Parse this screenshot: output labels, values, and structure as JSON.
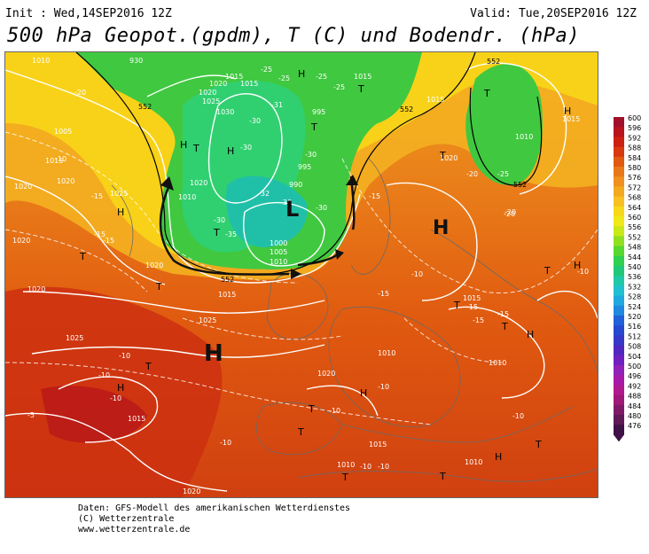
{
  "header": {
    "init": "Init : Wed,14SEP2016 12Z",
    "valid": "Valid: Tue,20SEP2016 12Z",
    "title": "500 hPa Geopot.(gpdm), T (C) und Bodendr. (hPa)"
  },
  "legend": {
    "levels": [
      "600",
      "596",
      "592",
      "588",
      "584",
      "580",
      "576",
      "572",
      "568",
      "564",
      "560",
      "556",
      "552",
      "548",
      "544",
      "540",
      "536",
      "532",
      "528",
      "524",
      "520",
      "516",
      "512",
      "508",
      "504",
      "500",
      "496",
      "492",
      "488",
      "484",
      "480",
      "476"
    ],
    "colors": [
      "#a0102a",
      "#b8141c",
      "#cc2010",
      "#d83a10",
      "#e05a10",
      "#e87818",
      "#f09020",
      "#f4a820",
      "#f8c020",
      "#f8d818",
      "#f0e818",
      "#c8e818",
      "#90e020",
      "#58d830",
      "#30d050",
      "#20c878",
      "#20c8a8",
      "#20c0d0",
      "#20a8e0",
      "#2088e0",
      "#2060d8",
      "#2848d0",
      "#3838c8",
      "#5028c0",
      "#7020c0",
      "#9020b8",
      "#a818a8",
      "#b01890",
      "#a01878",
      "#801868",
      "#601858",
      "#401048"
    ]
  },
  "map": {
    "pressure_labels": [
      "1010",
      "930",
      "1005",
      "1015",
      "1020",
      "1025",
      "1030",
      "1015",
      "1020",
      "1015",
      "995",
      "995",
      "990",
      "1000",
      "1005",
      "1010",
      "1020",
      "1025",
      "1020",
      "1020",
      "1020",
      "1025",
      "1025",
      "1015",
      "1015",
      "1010",
      "1015",
      "1010",
      "1010",
      "1015",
      "1020",
      "1010",
      "1015",
      "1015",
      "1020",
      "1010",
      "1020",
      "1010",
      "1020",
      "1015",
      "1020"
    ],
    "temp_labels": [
      "-20",
      "-25",
      "-30",
      "-31",
      "-32",
      "-30",
      "-30",
      "-25",
      "-25",
      "-30",
      "-30",
      "-35",
      "-30",
      "-25",
      "-20",
      "-15",
      "-15",
      "-10",
      "-15",
      "-10",
      "-10",
      "-15",
      "-15",
      "-10",
      "-20",
      "-10",
      "-10",
      "-15",
      "-5",
      "-10",
      "-10",
      "-10",
      "-10",
      "-15",
      "-20",
      "-25",
      "-10",
      "-10",
      "-15"
    ],
    "high_symbol": "H",
    "low_symbol": "L",
    "trough_symbol": "T",
    "height_labels": [
      "552",
      "552",
      "552",
      "552",
      "552"
    ]
  },
  "credits": {
    "line1": "Daten: GFS-Modell des amerikanischen Wetterdienstes",
    "line2": "(C) Wetterzentrale",
    "line3": "www.wetterzentrale.de"
  }
}
